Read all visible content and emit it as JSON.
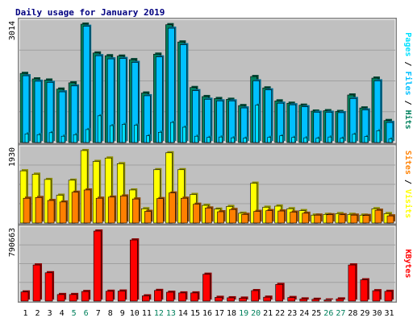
{
  "title": "Daily usage for January 2019",
  "colors": {
    "hits": "#00805C",
    "files": "#00C0FF",
    "pages": "#00E0FF",
    "sites": "#FF8000",
    "visits": "#FFFF00",
    "kbytes": "#FF0000",
    "slash": "#000000",
    "weekend": "#00805C",
    "weekday": "#000000",
    "panel": "#C0C0C0"
  },
  "chart_data": [
    {
      "type": "bar",
      "panel": "hits-files-pages",
      "max_label": "3014",
      "legend": [
        "Pages",
        "Files",
        "Hits"
      ],
      "categories": [
        "1",
        "2",
        "3",
        "4",
        "5",
        "6",
        "7",
        "8",
        "9",
        "10",
        "11",
        "12",
        "13",
        "14",
        "15",
        "16",
        "17",
        "18",
        "19",
        "20",
        "21",
        "22",
        "23",
        "24",
        "25",
        "26",
        "27",
        "28",
        "29",
        "30",
        "31"
      ],
      "series": [
        {
          "name": "Hits",
          "values": [
            1760,
            1620,
            1590,
            1360,
            1520,
            3014,
            2280,
            2210,
            2200,
            2110,
            1260,
            2250,
            3000,
            2560,
            1400,
            1170,
            1120,
            1100,
            940,
            1680,
            1390,
            1060,
            1000,
            950,
            800,
            810,
            790,
            1210,
            880,
            1640,
            560
          ]
        },
        {
          "name": "Files",
          "values": [
            1700,
            1560,
            1530,
            1290,
            1440,
            2960,
            2210,
            2130,
            2140,
            2040,
            1190,
            2180,
            2910,
            2490,
            1320,
            1100,
            1060,
            1060,
            880,
            1570,
            1340,
            1000,
            960,
            910,
            770,
            770,
            760,
            1120,
            830,
            1570,
            510
          ]
        },
        {
          "name": "Pages",
          "values": [
            220,
            200,
            250,
            160,
            200,
            330,
            680,
            430,
            460,
            440,
            170,
            260,
            510,
            390,
            160,
            130,
            140,
            120,
            110,
            950,
            130,
            170,
            130,
            120,
            110,
            140,
            110,
            210,
            150,
            300,
            90
          ]
        }
      ]
    },
    {
      "type": "bar",
      "panel": "visits-sites",
      "max_label": "1930",
      "legend": [
        "Sites",
        "Visits"
      ],
      "categories": [
        "1",
        "2",
        "3",
        "4",
        "5",
        "6",
        "7",
        "8",
        "9",
        "10",
        "11",
        "12",
        "13",
        "14",
        "15",
        "16",
        "17",
        "18",
        "19",
        "20",
        "21",
        "22",
        "23",
        "24",
        "25",
        "26",
        "27",
        "28",
        "29",
        "30",
        "31"
      ],
      "series": [
        {
          "name": "Visits",
          "values": [
            1390,
            1300,
            1160,
            740,
            1140,
            1930,
            1640,
            1730,
            1580,
            880,
            380,
            1420,
            1870,
            1420,
            760,
            470,
            370,
            440,
            260,
            1060,
            420,
            450,
            380,
            330,
            210,
            230,
            250,
            230,
            210,
            380,
            250
          ]
        },
        {
          "name": "Sites",
          "values": [
            660,
            680,
            600,
            560,
            820,
            880,
            660,
            690,
            720,
            640,
            310,
            650,
            800,
            660,
            500,
            400,
            300,
            360,
            230,
            310,
            330,
            320,
            290,
            260,
            210,
            220,
            220,
            210,
            200,
            340,
            190
          ]
        }
      ]
    },
    {
      "type": "bar",
      "panel": "kbytes",
      "max_label": "790663",
      "legend": [
        "KBytes"
      ],
      "categories": [
        "1",
        "2",
        "3",
        "4",
        "5",
        "6",
        "7",
        "8",
        "9",
        "10",
        "11",
        "12",
        "13",
        "14",
        "15",
        "16",
        "17",
        "18",
        "19",
        "20",
        "21",
        "22",
        "23",
        "24",
        "25",
        "26",
        "27",
        "28",
        "29",
        "30",
        "31"
      ],
      "series": [
        {
          "name": "KBytes",
          "values": [
            103000,
            408000,
            320000,
            74000,
            74000,
            108000,
            790663,
            111000,
            113000,
            690000,
            59000,
            120000,
            100000,
            92000,
            92000,
            303000,
            42000,
            37000,
            33000,
            118000,
            44000,
            188000,
            40000,
            24000,
            20000,
            12000,
            24000,
            408000,
            240000,
            117000,
            110000
          ]
        }
      ]
    }
  ],
  "weekend_days": [
    5,
    6,
    12,
    13,
    19,
    20,
    26,
    27
  ]
}
